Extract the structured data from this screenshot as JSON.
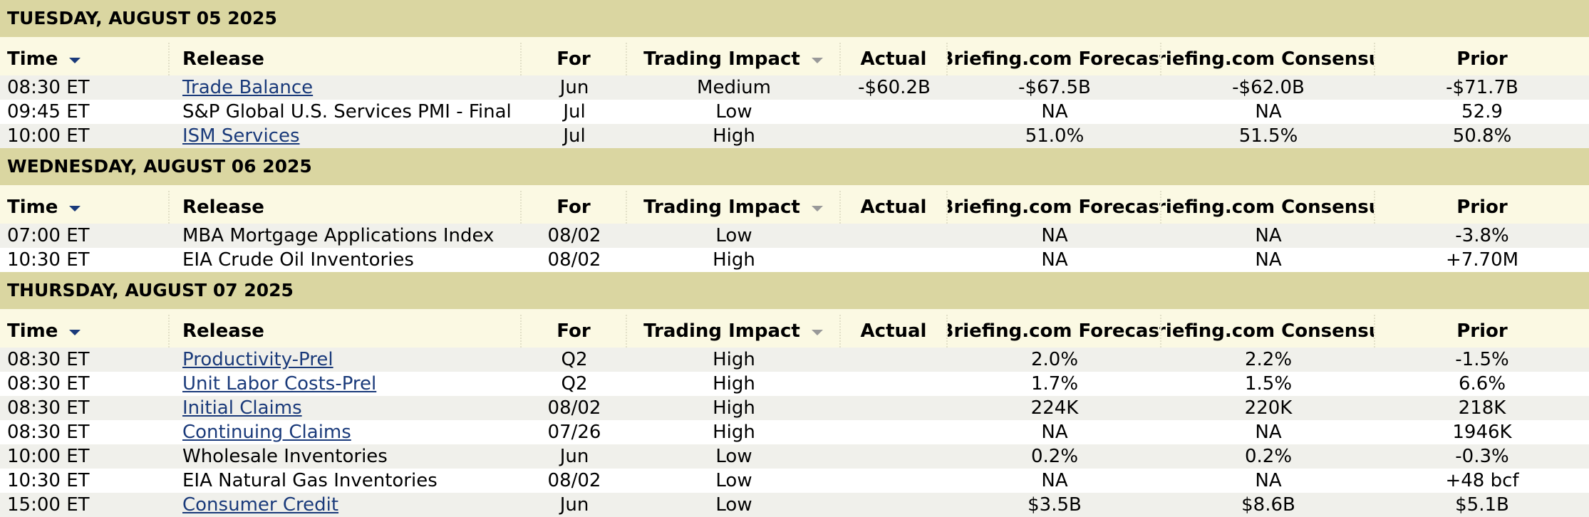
{
  "columns": {
    "time": "Time",
    "release": "Release",
    "for": "For",
    "impact": "Trading Impact",
    "actual": "Actual",
    "forecast": "Briefing.com Forecast",
    "consensus": "Briefing.com Consensus",
    "prior": "Prior"
  },
  "icons": {
    "time_sort": "sort-down-arrow-icon",
    "impact_sort": "sort-down-arrow-icon"
  },
  "colors": {
    "day_header_bg": "#dad6a1",
    "column_header_bg": "#fbf9e3",
    "row_shade_bg": "#f0f0eb",
    "link": "#1a3a7a"
  },
  "days": [
    {
      "date": "TUESDAY, AUGUST 05 2025",
      "rows": [
        {
          "time": "08:30 ET",
          "release": "Trade Balance",
          "link": true,
          "for": "Jun",
          "impact": "Medium",
          "actual": "-$60.2B",
          "forecast": "-$67.5B",
          "consensus": "-$62.0B",
          "prior": "-$71.7B"
        },
        {
          "time": "09:45 ET",
          "release": "S&P Global U.S. Services PMI - Final",
          "link": false,
          "for": "Jul",
          "impact": "Low",
          "actual": "",
          "forecast": "NA",
          "consensus": "NA",
          "prior": "52.9"
        },
        {
          "time": "10:00 ET",
          "release": "ISM Services",
          "link": true,
          "for": "Jul",
          "impact": "High",
          "actual": "",
          "forecast": "51.0%",
          "consensus": "51.5%",
          "prior": "50.8%"
        }
      ]
    },
    {
      "date": "WEDNESDAY, AUGUST 06 2025",
      "rows": [
        {
          "time": "07:00 ET",
          "release": "MBA Mortgage Applications Index",
          "link": false,
          "for": "08/02",
          "impact": "Low",
          "actual": "",
          "forecast": "NA",
          "consensus": "NA",
          "prior": "-3.8%"
        },
        {
          "time": "10:30 ET",
          "release": "EIA Crude Oil Inventories",
          "link": false,
          "for": "08/02",
          "impact": "High",
          "actual": "",
          "forecast": "NA",
          "consensus": "NA",
          "prior": "+7.70M"
        }
      ]
    },
    {
      "date": "THURSDAY, AUGUST 07 2025",
      "rows": [
        {
          "time": "08:30 ET",
          "release": "Productivity-Prel",
          "link": true,
          "for": "Q2",
          "impact": "High",
          "actual": "",
          "forecast": "2.0%",
          "consensus": "2.2%",
          "prior": "-1.5%"
        },
        {
          "time": "08:30 ET",
          "release": "Unit Labor Costs-Prel",
          "link": true,
          "for": "Q2",
          "impact": "High",
          "actual": "",
          "forecast": "1.7%",
          "consensus": "1.5%",
          "prior": "6.6%"
        },
        {
          "time": "08:30 ET",
          "release": "Initial Claims",
          "link": true,
          "for": "08/02",
          "impact": "High",
          "actual": "",
          "forecast": "224K",
          "consensus": "220K",
          "prior": "218K"
        },
        {
          "time": "08:30 ET",
          "release": "Continuing Claims",
          "link": true,
          "for": "07/26",
          "impact": "High",
          "actual": "",
          "forecast": "NA",
          "consensus": "NA",
          "prior": "1946K"
        },
        {
          "time": "10:00 ET",
          "release": "Wholesale Inventories",
          "link": false,
          "for": "Jun",
          "impact": "Low",
          "actual": "",
          "forecast": "0.2%",
          "consensus": "0.2%",
          "prior": "-0.3%"
        },
        {
          "time": "10:30 ET",
          "release": "EIA Natural Gas Inventories",
          "link": false,
          "for": "08/02",
          "impact": "Low",
          "actual": "",
          "forecast": "NA",
          "consensus": "NA",
          "prior": "+48 bcf"
        },
        {
          "time": "15:00 ET",
          "release": "Consumer Credit",
          "link": true,
          "for": "Jun",
          "impact": "Low",
          "actual": "",
          "forecast": "$3.5B",
          "consensus": "$8.6B",
          "prior": "$5.1B"
        }
      ]
    }
  ]
}
